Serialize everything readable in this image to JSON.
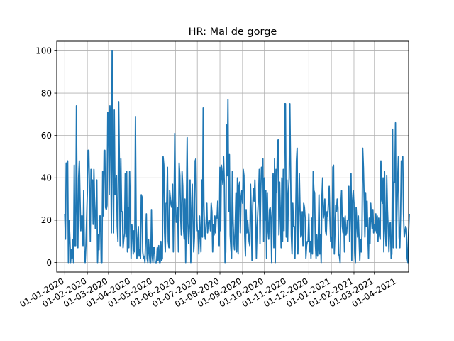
{
  "chart_data": {
    "type": "line",
    "title": "HR: Mal de gorge",
    "xlabel": "",
    "ylabel": "",
    "xlim": [
      "2019-12-21",
      "2021-04-17"
    ],
    "ylim": [
      -4.5,
      104.5
    ],
    "grid": true,
    "line_color": "#1f77b4",
    "y_ticks": [
      0,
      20,
      40,
      60,
      80,
      100
    ],
    "x_ticks": [
      {
        "date": "2020-01-01",
        "label": "01-01-2020"
      },
      {
        "date": "2020-02-01",
        "label": "01-02-2020"
      },
      {
        "date": "2020-03-01",
        "label": "01-03-2020"
      },
      {
        "date": "2020-04-01",
        "label": "01-04-2020"
      },
      {
        "date": "2020-05-01",
        "label": "01-05-2020"
      },
      {
        "date": "2020-06-01",
        "label": "01-06-2020"
      },
      {
        "date": "2020-07-01",
        "label": "01-07-2020"
      },
      {
        "date": "2020-08-01",
        "label": "01-08-2020"
      },
      {
        "date": "2020-09-01",
        "label": "01-09-2020"
      },
      {
        "date": "2020-10-01",
        "label": "01-10-2020"
      },
      {
        "date": "2020-11-01",
        "label": "01-11-2020"
      },
      {
        "date": "2020-12-01",
        "label": "01-12-2020"
      },
      {
        "date": "2021-01-01",
        "label": "01-01-2021"
      },
      {
        "date": "2021-02-01",
        "label": "01-02-2021"
      },
      {
        "date": "2021-03-01",
        "label": "01-03-2021"
      },
      {
        "date": "2021-04-01",
        "label": "01-04-2021"
      }
    ],
    "series": [
      {
        "start_date": "2020-01-01",
        "values": [
          23,
          11,
          47,
          41,
          48,
          0,
          20,
          12,
          0,
          6,
          2,
          11,
          0,
          46,
          8,
          8,
          74,
          24,
          7,
          40,
          48,
          30,
          15,
          22,
          22,
          8,
          34,
          2,
          0,
          8,
          21,
          33,
          53,
          53,
          34,
          10,
          44,
          38,
          39,
          18,
          44,
          27,
          16,
          25,
          39,
          0,
          13,
          6,
          22,
          22,
          0,
          0,
          43,
          22,
          53,
          53,
          26,
          25,
          27,
          71,
          71,
          32,
          74,
          61,
          14,
          100,
          48,
          14,
          72,
          32,
          39,
          41,
          17,
          10,
          76,
          47,
          8,
          49,
          24,
          24,
          7,
          11,
          14,
          42,
          12,
          43,
          5,
          26,
          7,
          43,
          25,
          2,
          18,
          15,
          4,
          15,
          5,
          69,
          18,
          2,
          10,
          17,
          3,
          6,
          2,
          32,
          31,
          5,
          2,
          3,
          0,
          11,
          23,
          2,
          0,
          11,
          5,
          0,
          0,
          25,
          3,
          0,
          7,
          7,
          0,
          0,
          0,
          7,
          1,
          8,
          0,
          0,
          10,
          1,
          2,
          50,
          46,
          14,
          5,
          28,
          28,
          45,
          10,
          7,
          34,
          30,
          27,
          26,
          37,
          5,
          27,
          61,
          29,
          19,
          20,
          26,
          5,
          47,
          41,
          22,
          13,
          43,
          36,
          16,
          11,
          30,
          0,
          28,
          59,
          19,
          9,
          18,
          39,
          0,
          23,
          37,
          20,
          5,
          12,
          48,
          49,
          23,
          15,
          15,
          4,
          22,
          13,
          5,
          39,
          12,
          73,
          27,
          14,
          11,
          19,
          28,
          14,
          18,
          20,
          20,
          15,
          28,
          24,
          5,
          18,
          13,
          22,
          14,
          22,
          21,
          29,
          14,
          8,
          45,
          15,
          46,
          42,
          37,
          50,
          38,
          0,
          5,
          65,
          41,
          77,
          24,
          51,
          13,
          7,
          2,
          43,
          20,
          10,
          6,
          18,
          33,
          5,
          40,
          4,
          36,
          38,
          14,
          31,
          34,
          28,
          44,
          41,
          13,
          3,
          25,
          14,
          20,
          15,
          10,
          8,
          37,
          23,
          1,
          27,
          35,
          29,
          39,
          24,
          2,
          16,
          24,
          31,
          44,
          9,
          33,
          45,
          40,
          49,
          10,
          40,
          20,
          34,
          2,
          33,
          15,
          11,
          25,
          26,
          21,
          0,
          33,
          42,
          7,
          49,
          0,
          44,
          33,
          57,
          58,
          13,
          38,
          23,
          7,
          40,
          10,
          44,
          15,
          75,
          75,
          12,
          39,
          10,
          33,
          40,
          75,
          45,
          13,
          4,
          28,
          17,
          17,
          2,
          22,
          48,
          54,
          4,
          18,
          42,
          25,
          12,
          13,
          24,
          8,
          28,
          26,
          21,
          2,
          8,
          10,
          10,
          23,
          5,
          10,
          2,
          21,
          4,
          43,
          34,
          33,
          9,
          2,
          13,
          3,
          10,
          32,
          4,
          13,
          0,
          31,
          40,
          21,
          23,
          30,
          15,
          13,
          24,
          22,
          29,
          36,
          20,
          10,
          12,
          7,
          45,
          46,
          4,
          15,
          27,
          24,
          30,
          26,
          4,
          3,
          0,
          27,
          34,
          17,
          14,
          21,
          5,
          22,
          13,
          14,
          20,
          20,
          36,
          10,
          25,
          42,
          1,
          29,
          34,
          28,
          5,
          0,
          26,
          19,
          12,
          22,
          11,
          1,
          11,
          5,
          13,
          54,
          45,
          30,
          12,
          33,
          17,
          29,
          14,
          2,
          21,
          9,
          28,
          21,
          16,
          25,
          14,
          18,
          15,
          23,
          14,
          22,
          10,
          21,
          13,
          11,
          48,
          30,
          28,
          40,
          5,
          43,
          16,
          8,
          41,
          25,
          16,
          5,
          18,
          19,
          2,
          4,
          63,
          7,
          38,
          38,
          66,
          7,
          24,
          39,
          50,
          12,
          7,
          22,
          48,
          48,
          50,
          23,
          12,
          14,
          17,
          16,
          2,
          0,
          14,
          23
        ]
      }
    ]
  }
}
